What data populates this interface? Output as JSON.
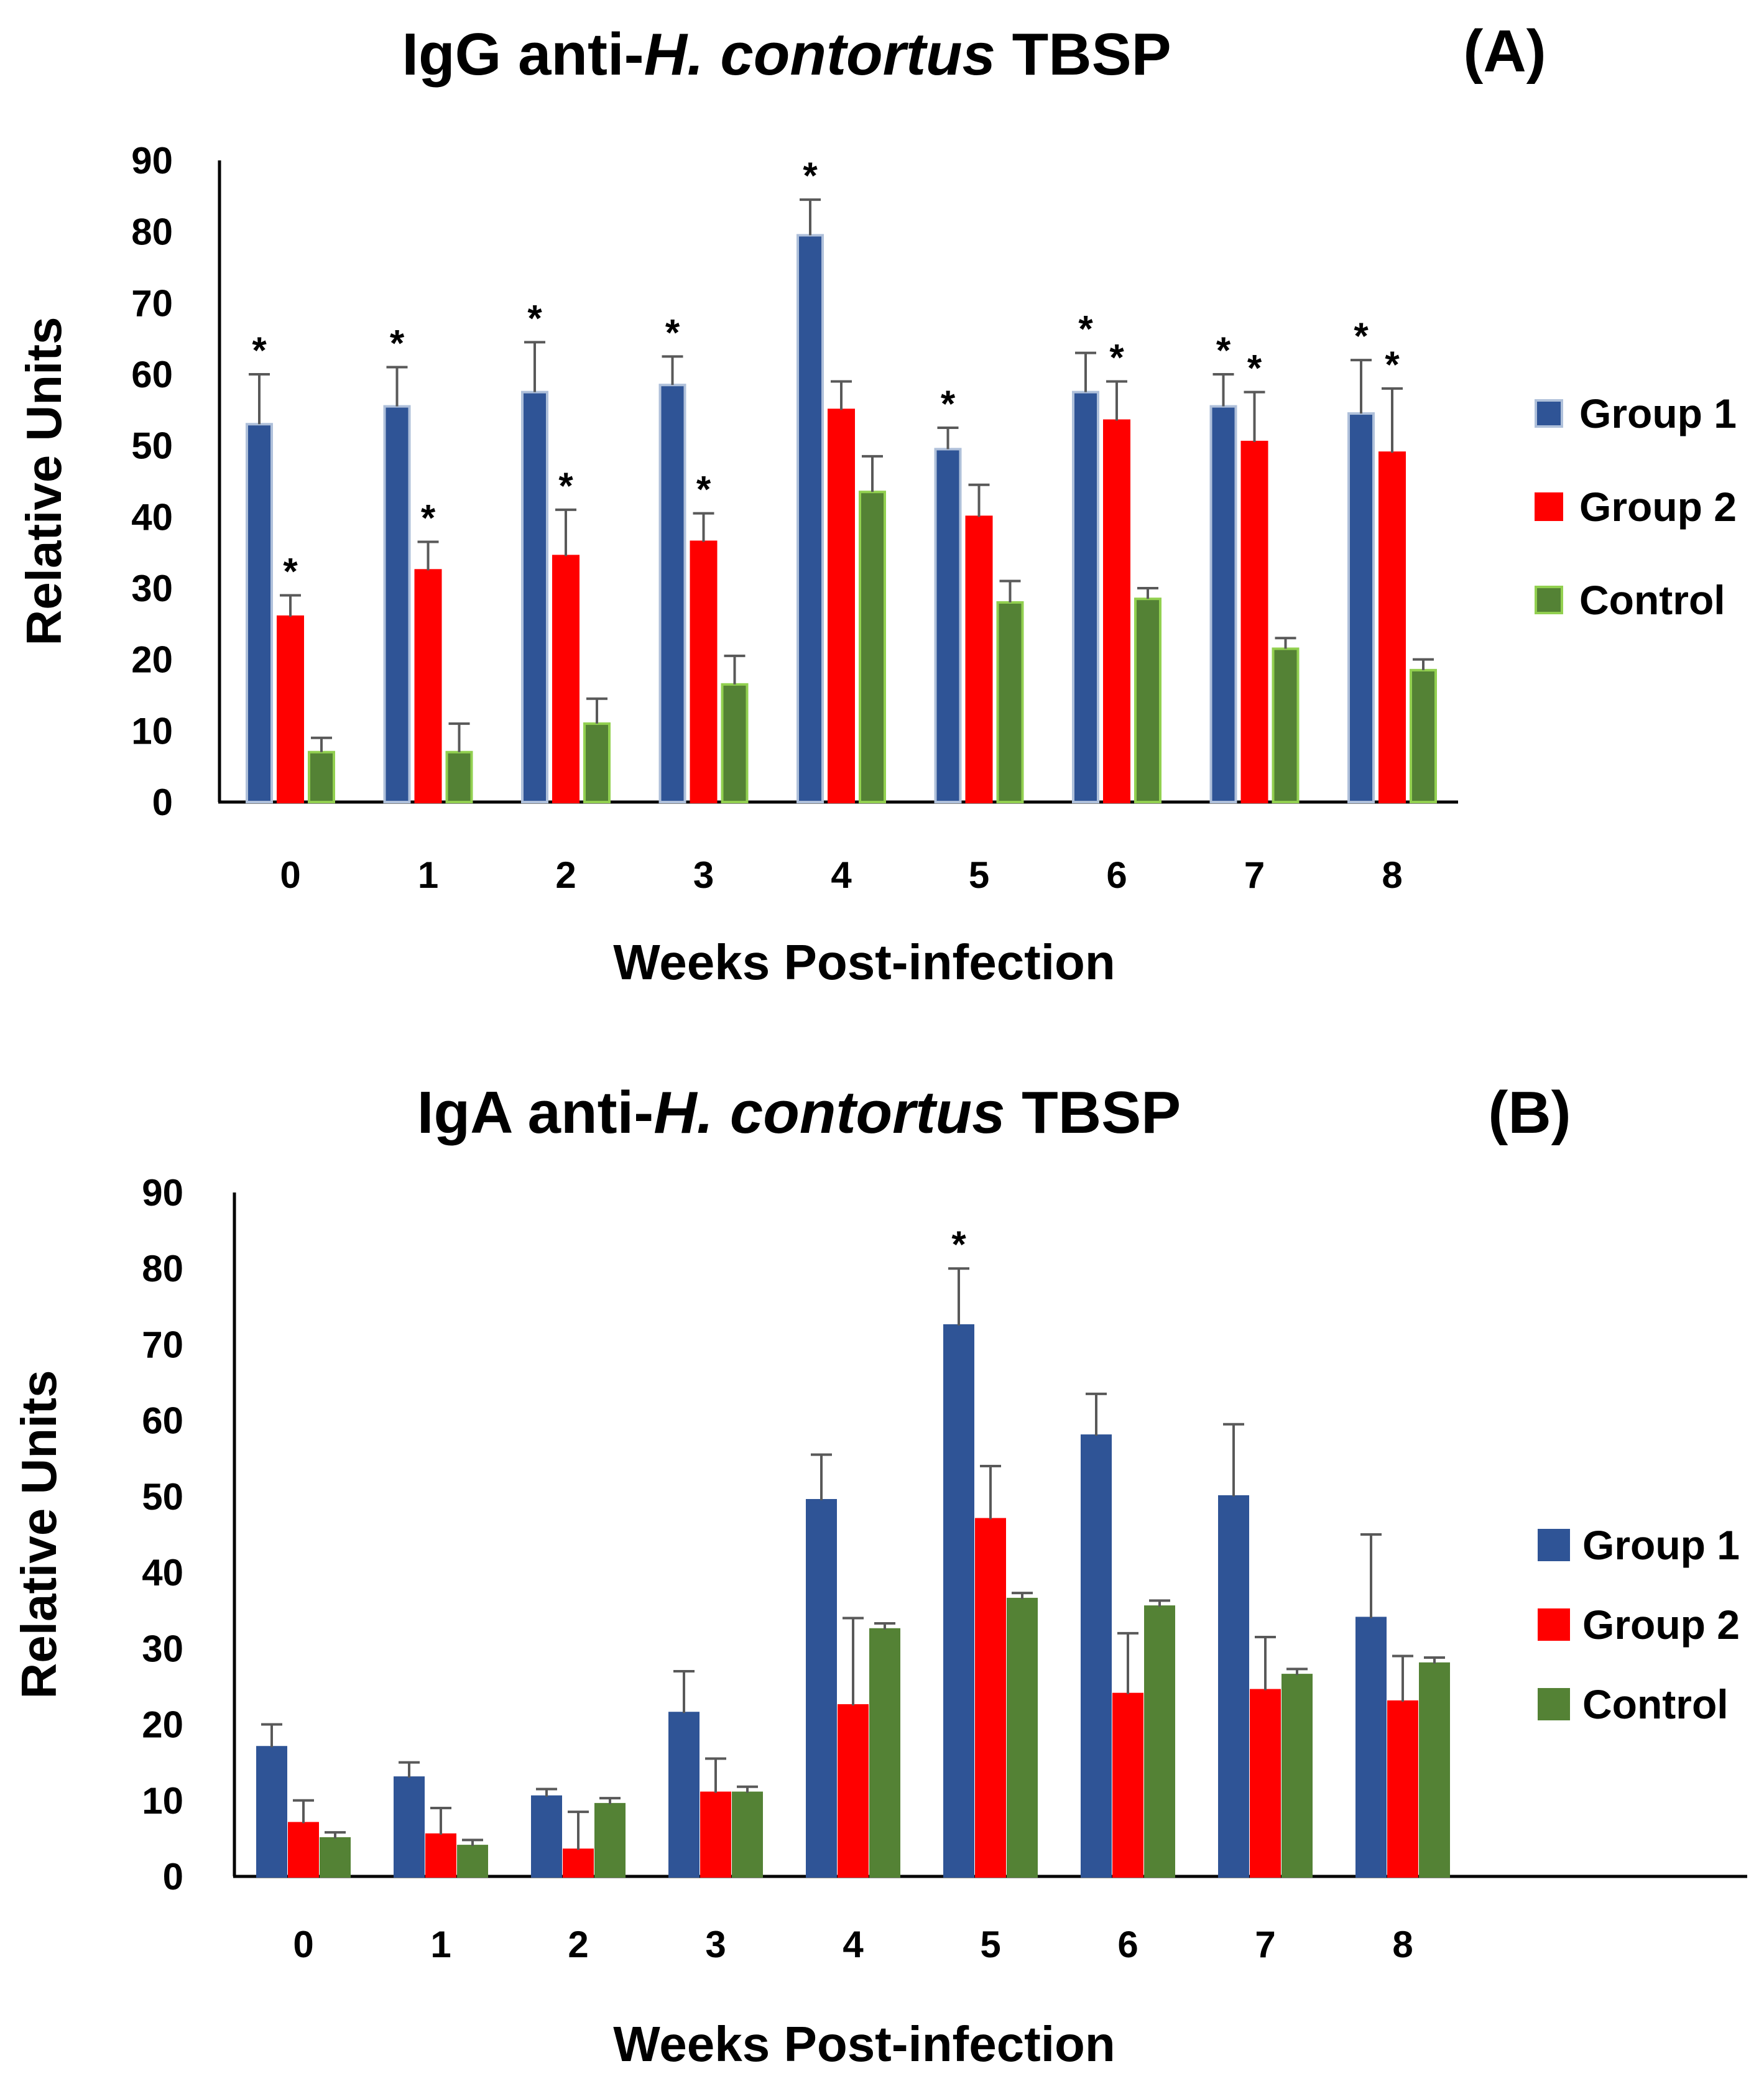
{
  "chart_data": [
    {
      "type": "bar",
      "title_prefix": "IgG anti-",
      "title_italic": "H. contortus",
      "title_suffix": " TBSP",
      "panel_label": "(A)",
      "xlabel": "Weeks Post-infection",
      "ylabel": "Relative Units",
      "ylim": [
        0,
        90
      ],
      "yticks": [
        0,
        10,
        20,
        30,
        40,
        50,
        60,
        70,
        80,
        90
      ],
      "categories": [
        "0",
        "1",
        "2",
        "3",
        "4",
        "5",
        "6",
        "7",
        "8"
      ],
      "grid": false,
      "legend_position": "right",
      "series": [
        {
          "name": "Group 1",
          "color": "#2F5496",
          "edge": "#AFC0DA",
          "values": [
            53,
            55.5,
            57.5,
            58.5,
            79.5,
            49.5,
            57.5,
            55.5,
            54.5
          ],
          "errors": [
            7,
            5.5,
            7,
            4,
            5,
            3,
            5.5,
            4.5,
            7.5
          ],
          "significant": [
            true,
            true,
            true,
            true,
            true,
            true,
            true,
            true,
            true
          ]
        },
        {
          "name": "Group 2",
          "color": "#FF0000",
          "edge": "#FF0000",
          "values": [
            26,
            32.5,
            34.5,
            36.5,
            55,
            40,
            53.5,
            50.5,
            49
          ],
          "errors": [
            3,
            4,
            6.5,
            4,
            4,
            4.5,
            5.5,
            7,
            9
          ],
          "significant": [
            true,
            true,
            true,
            true,
            false,
            false,
            true,
            true,
            true
          ]
        },
        {
          "name": "Control",
          "color": "#548235",
          "edge": "#92D050",
          "values": [
            7,
            7,
            11,
            16.5,
            43.5,
            28,
            28.5,
            21.5,
            18.5
          ],
          "errors": [
            2,
            4,
            3.5,
            4,
            5,
            3,
            1.5,
            1.5,
            1.5
          ],
          "significant": [
            false,
            false,
            false,
            false,
            false,
            false,
            false,
            false,
            false
          ]
        }
      ],
      "significance_marker": "*"
    },
    {
      "type": "bar",
      "title_prefix": "IgA anti-",
      "title_italic": "H. contortus",
      "title_suffix": " TBSP",
      "panel_label": "(B)",
      "xlabel": "Weeks Post-infection",
      "ylabel": "Relative Units",
      "ylim": [
        0,
        90
      ],
      "yticks": [
        0,
        10,
        20,
        30,
        40,
        50,
        60,
        70,
        80,
        90
      ],
      "categories": [
        "0",
        "1",
        "2",
        "3",
        "4",
        "5",
        "6",
        "7",
        "8"
      ],
      "grid": false,
      "legend_position": "right",
      "series": [
        {
          "name": "Group 1",
          "color": "#2F5496",
          "edge": "#2F5496",
          "values": [
            17,
            13,
            10.5,
            21.5,
            49.5,
            72.5,
            58,
            50,
            34
          ],
          "errors": [
            3,
            2,
            1,
            5.5,
            6,
            7.5,
            5.5,
            9.5,
            11
          ],
          "significant": [
            false,
            false,
            false,
            false,
            false,
            true,
            false,
            false,
            false
          ]
        },
        {
          "name": "Group 2",
          "color": "#FF0000",
          "edge": "#FF0000",
          "values": [
            7,
            5.5,
            3.5,
            11,
            22.5,
            47,
            24,
            24.5,
            23
          ],
          "errors": [
            3,
            3.5,
            5,
            4.5,
            11.5,
            7,
            8,
            7,
            6
          ],
          "significant": [
            false,
            false,
            false,
            false,
            false,
            false,
            false,
            false,
            false
          ]
        },
        {
          "name": "Control",
          "color": "#548235",
          "edge": "#548235",
          "values": [
            5,
            4,
            9.5,
            11,
            32.5,
            36.5,
            35.5,
            26.5,
            28
          ],
          "errors": [
            0.8,
            0.8,
            0.8,
            0.8,
            0.8,
            0.8,
            0.8,
            0.8,
            0.8
          ],
          "significant": [
            false,
            false,
            false,
            false,
            false,
            false,
            false,
            false,
            false
          ]
        }
      ],
      "significance_marker": "*"
    }
  ]
}
